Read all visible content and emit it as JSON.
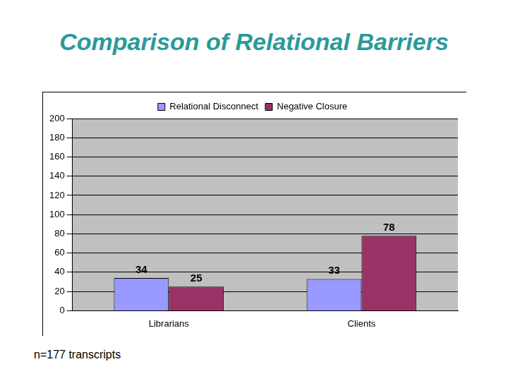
{
  "chart_data": {
    "type": "bar",
    "title": "Comparison of Relational Barriers",
    "categories": [
      "Librarians",
      "Clients"
    ],
    "series": [
      {
        "name": "Relational Disconnect",
        "color": "#9999ff",
        "values": [
          34,
          33
        ]
      },
      {
        "name": "Negative Closure",
        "color": "#993366",
        "values": [
          25,
          78
        ]
      }
    ],
    "ylim": [
      0,
      200
    ],
    "yticks": [
      0,
      20,
      40,
      60,
      80,
      100,
      120,
      140,
      160,
      180,
      200
    ],
    "grid": true,
    "legend": "top",
    "data_labels": true,
    "annotations": [
      "n=177 transcripts"
    ]
  }
}
